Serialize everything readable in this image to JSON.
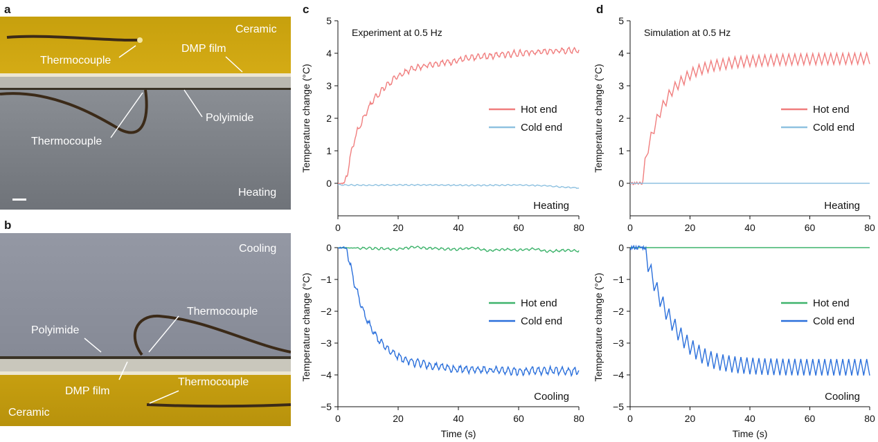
{
  "panels": {
    "a": "a",
    "b": "b",
    "c": "c",
    "d": "d"
  },
  "photo_a": {
    "labels": {
      "ceramic": "Ceramic",
      "dmp_film": "DMP film",
      "thermocouple_top": "Thermocouple",
      "polyimide": "Polyimide",
      "thermocouple_bottom": "Thermocouple",
      "mode": "Heating"
    },
    "colors": {
      "ceramic": "#c9a10f",
      "film": "#e6e0c8",
      "gray": "#7b7f85"
    }
  },
  "photo_b": {
    "labels": {
      "mode": "Cooling",
      "thermocouple_top": "Thermocouple",
      "polyimide": "Polyimide",
      "dmp_film": "DMP film",
      "thermocouple_bottom": "Thermocouple",
      "ceramic": "Ceramic"
    },
    "colors": {
      "ceramic": "#c9a10f",
      "film": "#e6e0c8",
      "gray": "#8e929d"
    }
  },
  "colors": {
    "hot_heating": "#f07d7d",
    "cold_heating": "#8ec1e0",
    "hot_cooling": "#3db36b",
    "cold_cooling": "#2a6fdb"
  },
  "chart_data": [
    {
      "id": "c-heating",
      "type": "line",
      "title": "Experiment at 0.5 Hz",
      "mode_label": "Heating",
      "xlabel": "",
      "ylabel": "Temperature change (°C)",
      "xlim": [
        0,
        80
      ],
      "ylim": [
        -1,
        5
      ],
      "xticks": [
        0,
        20,
        40,
        60,
        80
      ],
      "yticks": [
        5,
        4,
        3,
        2,
        1,
        0
      ],
      "legend_position": "right",
      "series": [
        {
          "name": "Hot end",
          "color": "#f07d7d",
          "x": [
            0,
            2,
            3,
            4,
            6,
            8,
            10,
            12,
            14,
            16,
            18,
            20,
            22,
            24,
            26,
            28,
            30,
            34,
            38,
            42,
            46,
            50,
            55,
            60,
            65,
            70,
            75,
            80
          ],
          "y": [
            0,
            0,
            0.2,
            0.8,
            1.5,
            1.9,
            2.3,
            2.6,
            2.8,
            3.0,
            3.15,
            3.3,
            3.4,
            3.5,
            3.55,
            3.6,
            3.65,
            3.7,
            3.75,
            3.82,
            3.88,
            3.92,
            3.97,
            4.0,
            4.03,
            4.06,
            4.08,
            4.1
          ],
          "oscillation": 0.08
        },
        {
          "name": "Cold end",
          "color": "#8ec1e0",
          "x": [
            0,
            10,
            20,
            30,
            40,
            50,
            60,
            70,
            75,
            80
          ],
          "y": [
            -0.05,
            -0.06,
            -0.05,
            -0.05,
            -0.06,
            -0.06,
            -0.05,
            -0.08,
            -0.12,
            -0.14
          ],
          "oscillation": 0.015
        }
      ]
    },
    {
      "id": "c-cooling",
      "type": "line",
      "title": "",
      "mode_label": "Cooling",
      "xlabel": "Time (s)",
      "ylabel": "Temperature change (°C)",
      "xlim": [
        0,
        80
      ],
      "ylim": [
        -5,
        0
      ],
      "xticks": [
        0,
        20,
        40,
        60,
        80
      ],
      "yticks": [
        0,
        -1,
        -2,
        -3,
        -4,
        -5
      ],
      "legend_position": "right",
      "series": [
        {
          "name": "Hot end",
          "color": "#3db36b",
          "x": [
            0,
            10,
            20,
            25,
            30,
            40,
            45,
            50,
            55,
            60,
            65,
            70,
            75,
            80
          ],
          "y": [
            0,
            -0.02,
            -0.05,
            0.02,
            -0.02,
            -0.05,
            0,
            -0.1,
            -0.05,
            -0.08,
            -0.04,
            -0.12,
            -0.08,
            -0.1
          ],
          "oscillation": 0.03
        },
        {
          "name": "Cold end",
          "color": "#2a6fdb",
          "x": [
            0,
            2,
            3,
            4,
            6,
            8,
            10,
            12,
            14,
            16,
            18,
            20,
            22,
            24,
            26,
            28,
            30,
            34,
            38,
            42,
            46,
            50,
            55,
            60,
            65,
            70,
            75,
            80
          ],
          "y": [
            0,
            0,
            -0.1,
            -0.5,
            -1.3,
            -1.9,
            -2.35,
            -2.7,
            -2.95,
            -3.15,
            -3.3,
            -3.42,
            -3.5,
            -3.57,
            -3.62,
            -3.66,
            -3.7,
            -3.75,
            -3.8,
            -3.82,
            -3.84,
            -3.85,
            -3.86,
            -3.87,
            -3.87,
            -3.88,
            -3.88,
            -3.88
          ],
          "oscillation": 0.1
        }
      ]
    },
    {
      "id": "d-heating",
      "type": "line",
      "title": "Simulation at 0.5 Hz",
      "mode_label": "Heating",
      "xlabel": "",
      "ylabel": "Temperature change (°C)",
      "xlim": [
        0,
        80
      ],
      "ylim": [
        -1,
        5
      ],
      "xticks": [
        0,
        20,
        40,
        60,
        80
      ],
      "yticks": [
        5,
        4,
        3,
        2,
        1,
        0
      ],
      "legend_position": "right",
      "series": [
        {
          "name": "Hot end",
          "color": "#f07d7d",
          "x": [
            0,
            4,
            5,
            6,
            8,
            10,
            12,
            14,
            16,
            18,
            20,
            22,
            24,
            26,
            28,
            30,
            35,
            40,
            45,
            50,
            60,
            70,
            80
          ],
          "y": [
            0,
            0,
            0.6,
            1.1,
            1.7,
            2.2,
            2.55,
            2.85,
            3.05,
            3.2,
            3.35,
            3.45,
            3.52,
            3.58,
            3.62,
            3.65,
            3.72,
            3.76,
            3.78,
            3.8,
            3.82,
            3.83,
            3.84
          ],
          "oscillation": 0.17,
          "sawtooth": true
        },
        {
          "name": "Cold end",
          "color": "#8ec1e0",
          "x": [
            0,
            80
          ],
          "y": [
            0,
            0
          ],
          "oscillation": 0
        }
      ]
    },
    {
      "id": "d-cooling",
      "type": "line",
      "title": "",
      "mode_label": "Cooling",
      "xlabel": "Time (s)",
      "ylabel": "Temperature change (°C)",
      "xlim": [
        0,
        80
      ],
      "ylim": [
        -5,
        0
      ],
      "xticks": [
        0,
        20,
        40,
        60,
        80
      ],
      "yticks": [
        0,
        -1,
        -2,
        -3,
        -4,
        -5
      ],
      "legend_position": "right",
      "series": [
        {
          "name": "Hot end",
          "color": "#3db36b",
          "x": [
            0,
            80
          ],
          "y": [
            0,
            0
          ],
          "oscillation": 0
        },
        {
          "name": "Cold end",
          "color": "#2a6fdb",
          "x": [
            0,
            5,
            6,
            7,
            8,
            10,
            12,
            14,
            16,
            18,
            20,
            22,
            24,
            26,
            28,
            30,
            35,
            40,
            45,
            50,
            60,
            70,
            80
          ],
          "y": [
            0,
            0,
            -0.5,
            -0.8,
            -1.1,
            -1.6,
            -2.0,
            -2.35,
            -2.65,
            -2.9,
            -3.1,
            -3.25,
            -3.38,
            -3.48,
            -3.55,
            -3.6,
            -3.68,
            -3.72,
            -3.74,
            -3.75,
            -3.76,
            -3.76,
            -3.76
          ],
          "oscillation": 0.26,
          "sawtooth": true
        }
      ]
    }
  ]
}
